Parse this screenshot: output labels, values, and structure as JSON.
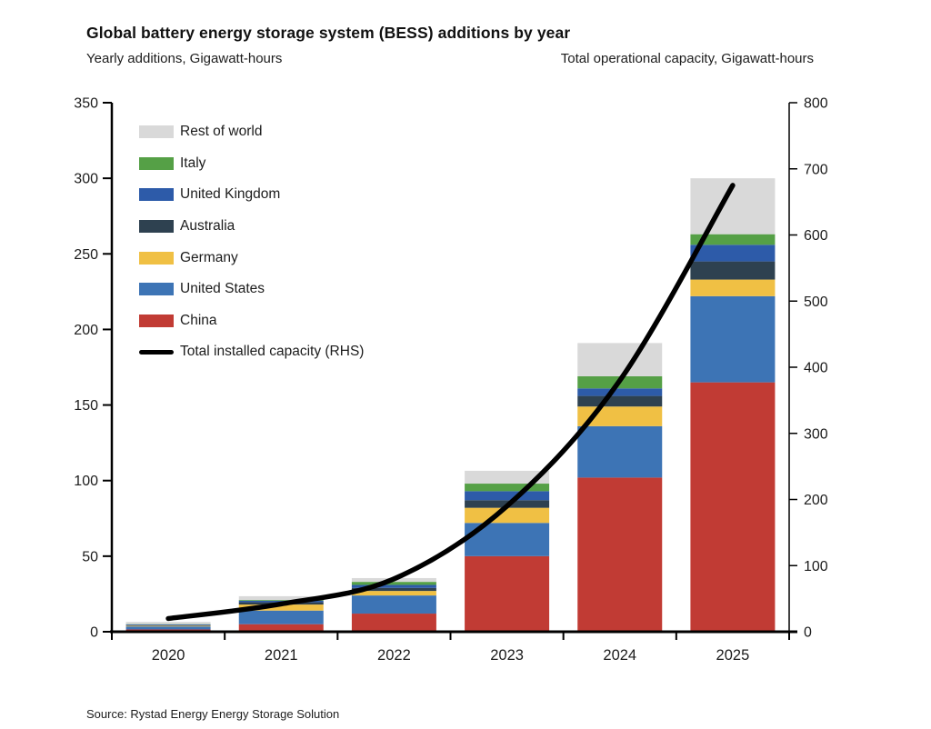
{
  "header": {
    "title": "Global battery energy storage system (BESS) additions by year",
    "subtitle_left": "Yearly additions, Gigawatt-hours",
    "subtitle_right": "Total operational capacity, Gigawatt-hours"
  },
  "source": "Source: Rystad Energy Energy Storage Solution",
  "chart_data": {
    "type": "bar",
    "stacked": true,
    "grid": false,
    "legend_position": "top-left-inside",
    "title": "Global battery energy storage system (BESS) additions by year",
    "xlabel": "",
    "ylabel_left": "Yearly additions, Gigawatt-hours",
    "ylabel_right": "Total operational capacity, Gigawatt-hours",
    "categories": [
      "2020",
      "2021",
      "2022",
      "2023",
      "2024",
      "2025"
    ],
    "series": [
      {
        "name": "China",
        "color": "#c13b34",
        "values": [
          1.5,
          5.0,
          12.0,
          50.0,
          102.0,
          165.0
        ]
      },
      {
        "name": "United States",
        "color": "#3d74b5",
        "values": [
          2.0,
          9.0,
          12.0,
          22.0,
          34.0,
          57.0
        ]
      },
      {
        "name": "Germany",
        "color": "#f0c044",
        "values": [
          0.5,
          4.0,
          3.0,
          10.0,
          13.0,
          11.0
        ]
      },
      {
        "name": "Australia",
        "color": "#2e4150",
        "values": [
          0.3,
          1.5,
          2.0,
          5.0,
          7.0,
          12.0
        ]
      },
      {
        "name": "United Kingdom",
        "color": "#2d5ba9",
        "values": [
          0.5,
          1.0,
          2.0,
          6.0,
          5.0,
          11.0
        ]
      },
      {
        "name": "Italy",
        "color": "#55a046",
        "values": [
          0.2,
          0.5,
          2.0,
          5.0,
          8.0,
          7.0
        ]
      },
      {
        "name": "Rest of world",
        "color": "#d9d9d9",
        "values": [
          1.5,
          2.5,
          2.5,
          8.5,
          22.0,
          37.0
        ]
      }
    ],
    "line_series": {
      "name": "Total installed capacity (RHS)",
      "color": "#000000",
      "axis": "right",
      "values": [
        20,
        42,
        80,
        190,
        380,
        675
      ]
    },
    "left_axis": {
      "min": 0,
      "max": 350,
      "step": 50,
      "tick_labels": [
        "0",
        "50",
        "100",
        "150",
        "200",
        "250",
        "300",
        "350"
      ]
    },
    "right_axis": {
      "min": 0,
      "max": 800,
      "step": 100,
      "tick_labels": [
        "0",
        "100",
        "200",
        "300",
        "400",
        "500",
        "600",
        "700",
        "800"
      ]
    }
  }
}
